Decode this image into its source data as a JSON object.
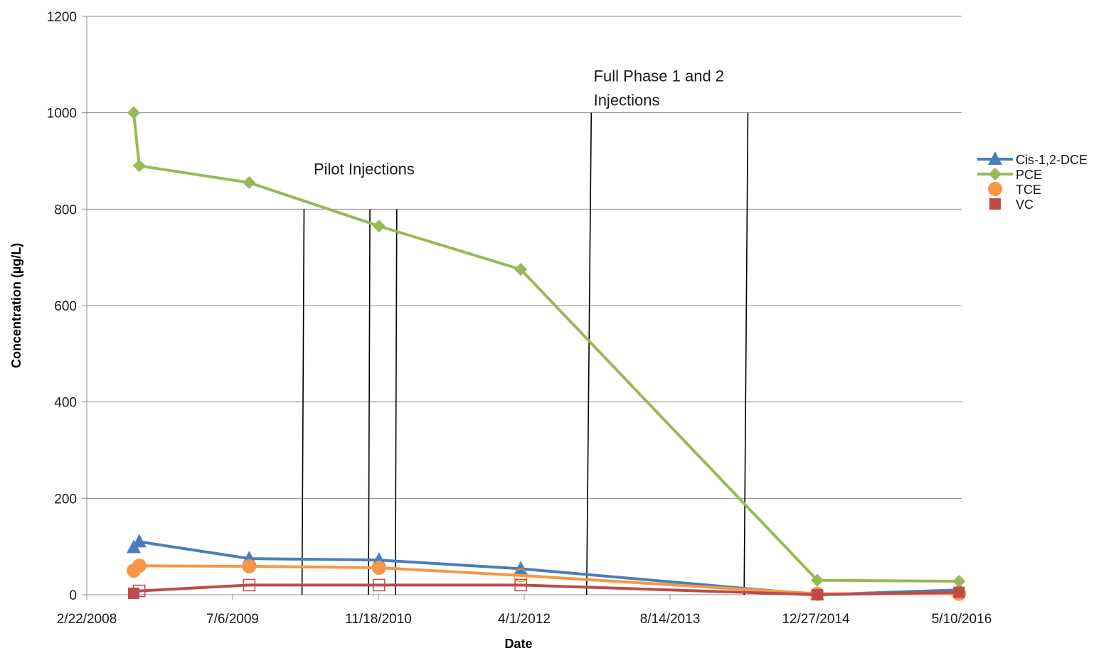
{
  "chart_data": {
    "type": "line",
    "xlabel": "Date",
    "ylabel": "Concentration (µg/L)",
    "ylim": [
      0,
      1200
    ],
    "yticks": [
      0,
      200,
      400,
      600,
      800,
      1000,
      1200
    ],
    "xlim": [
      "2008-02-22",
      "2016-05-10"
    ],
    "xticks": [
      {
        "label": "2/22/2008",
        "date": "2008-02-22"
      },
      {
        "label": "7/6/2009",
        "date": "2009-07-06"
      },
      {
        "label": "11/18/2010",
        "date": "2010-11-18"
      },
      {
        "label": "4/1/2012",
        "date": "2012-04-01"
      },
      {
        "label": "8/14/2013",
        "date": "2013-08-14"
      },
      {
        "label": "12/27/2014",
        "date": "2014-12-27"
      },
      {
        "label": "5/10/2016",
        "date": "2016-05-10"
      }
    ],
    "grid": "horizontal",
    "legend_position": "right",
    "series": [
      {
        "name": "Cis-1,2-DCE",
        "color": "#4a7ebb",
        "marker": "triangle",
        "line": true,
        "points": [
          [
            "2008-08-01",
            98
          ],
          [
            "2008-08-20",
            110
          ],
          [
            "2009-09-01",
            75
          ],
          [
            "2010-11-20",
            72
          ],
          [
            "2012-03-20",
            54
          ],
          [
            "2015-01-01",
            0
          ],
          [
            "2016-05-01",
            10
          ]
        ],
        "open_points": []
      },
      {
        "name": "PCE",
        "color": "#98b954",
        "marker": "diamond",
        "line": true,
        "points": [
          [
            "2008-08-01",
            1000
          ],
          [
            "2008-08-20",
            890
          ],
          [
            "2009-09-01",
            855
          ],
          [
            "2010-11-20",
            765
          ],
          [
            "2012-03-20",
            675
          ],
          [
            "2015-01-01",
            30
          ],
          [
            "2016-05-01",
            28
          ]
        ],
        "open_points": []
      },
      {
        "name": "TCE",
        "color": "#f79646",
        "marker": "circle",
        "line": true,
        "points": [
          [
            "2008-08-01",
            50
          ],
          [
            "2008-08-20",
            60
          ],
          [
            "2009-09-01",
            59
          ],
          [
            "2010-11-20",
            56
          ],
          [
            "2015-01-01",
            2
          ],
          [
            "2016-05-01",
            2
          ]
        ],
        "open_points": [
          [
            "2012-03-20",
            40
          ]
        ]
      },
      {
        "name": "VC",
        "color": "#be4b48",
        "marker": "square",
        "line": true,
        "points": [
          [
            "2008-08-01",
            3
          ],
          [
            "2015-01-01",
            0
          ],
          [
            "2016-05-01",
            5
          ]
        ],
        "open_points": [
          [
            "2008-08-20",
            8
          ],
          [
            "2009-09-01",
            20
          ],
          [
            "2010-11-20",
            20
          ],
          [
            "2012-03-20",
            20
          ]
        ]
      }
    ],
    "annotations": [
      {
        "text": "Pilot Injections",
        "x": "2010-04-10",
        "y": 872
      },
      {
        "text": "Full Phase 1 and 2",
        "x": "2012-11-25",
        "y": 1065
      },
      {
        "text": "Injections",
        "x": "2012-11-25",
        "y": 1015
      }
    ],
    "vlines": [
      {
        "x1": "2010-03-08",
        "y1": 800,
        "x2": "2010-03-01",
        "y2": 0
      },
      {
        "x1": "2010-10-20",
        "y1": 800,
        "x2": "2010-10-15",
        "y2": 0
      },
      {
        "x1": "2011-01-20",
        "y1": 800,
        "x2": "2011-01-15",
        "y2": 0
      },
      {
        "x1": "2012-11-17",
        "y1": 1000,
        "x2": "2012-11-01",
        "y2": 0
      },
      {
        "x1": "2014-05-08",
        "y1": 1000,
        "x2": "2014-04-25",
        "y2": 0
      }
    ]
  }
}
